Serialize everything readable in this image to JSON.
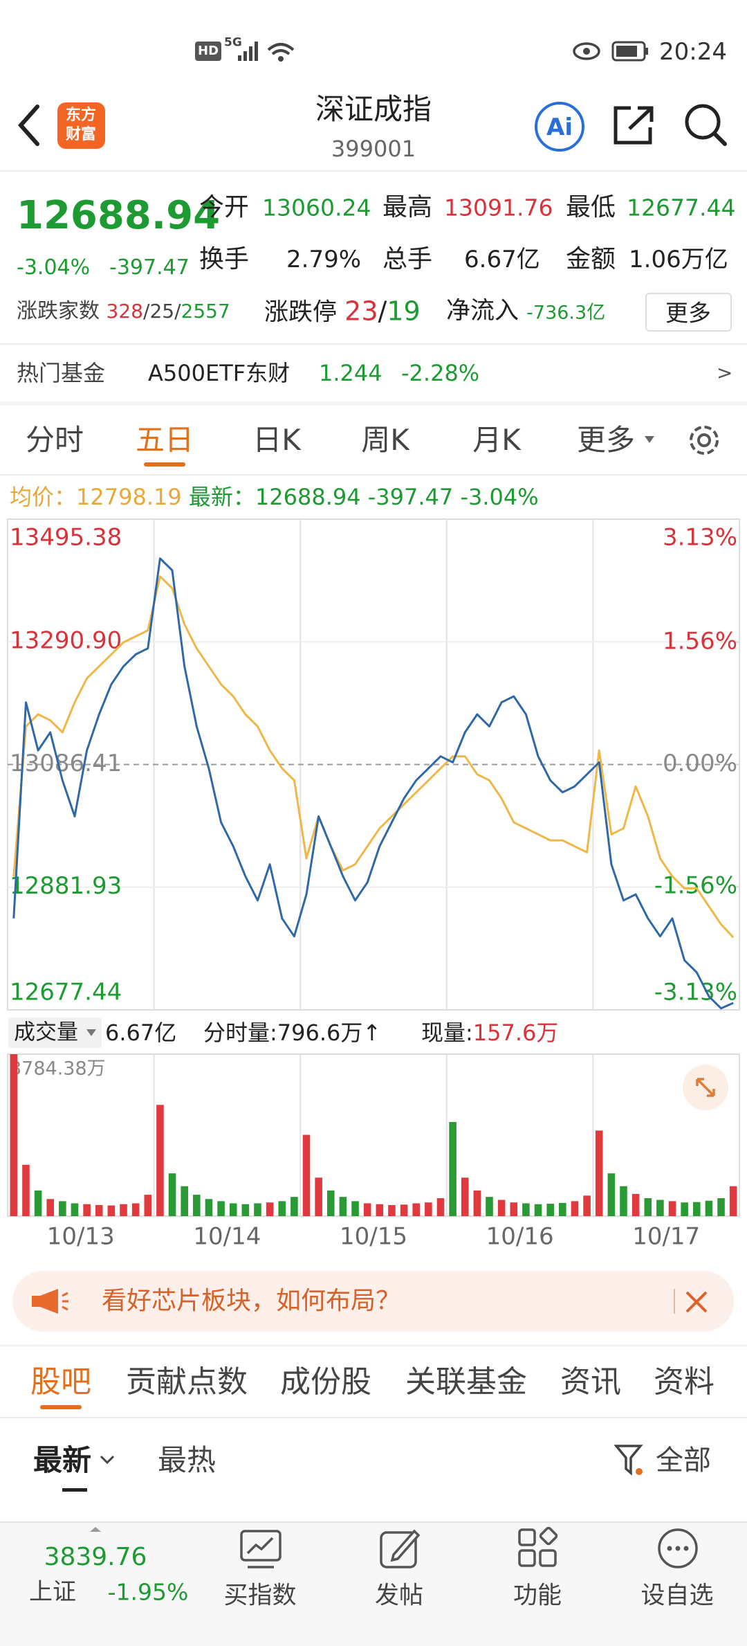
{
  "status_bar": {
    "hd": "HD",
    "network": "5G",
    "time": "20:24"
  },
  "header": {
    "logo": [
      "东方",
      "财富"
    ],
    "title": "深证成指",
    "code": "399001",
    "ai": "Ai"
  },
  "quote": {
    "price": "12688.94",
    "change_pct": "-3.04%",
    "change": "-397.47",
    "stats": [
      {
        "label": "今开",
        "value": "13060.24"
      },
      {
        "label": "最高",
        "value": "13091.76"
      },
      {
        "label": "最低",
        "value": "12677.44"
      },
      {
        "label": "换手",
        "value": "2.79%"
      },
      {
        "label": "总手",
        "value": "6.67亿"
      },
      {
        "label": "金额",
        "value": "1.06万亿"
      }
    ],
    "breadth": {
      "label": "涨跌家数",
      "up": "328",
      "flat": "25",
      "down": "2557",
      "separator": "/"
    },
    "limit": {
      "label": "涨跌停",
      "up": "23",
      "down": "19",
      "separator": "/"
    },
    "net_inflow": {
      "label": "净流入",
      "value": "-736.3亿"
    },
    "more": "更多"
  },
  "hot_fund": {
    "label": "热门基金",
    "name": "A500ETF东财",
    "price": "1.244",
    "change": "-2.28%",
    "arrow": ">"
  },
  "chart_tabs": [
    "分时",
    "五日",
    "日K",
    "周K",
    "月K",
    "更多"
  ],
  "chart_info": {
    "change": "-397.47",
    "change_pct": "-3.04%"
  },
  "volume_info": {
    "label": "成交量",
    "total": "6.67亿",
    "tick_volume": "分时量:796.6万↑",
    "current_label": "现量:",
    "current": "157.6万"
  },
  "chart_data": [
    {
      "type": "line",
      "ylim": [
        12677.44,
        13495.38
      ],
      "yticks": [
        12677.44,
        12881.93,
        13086.41,
        {
          "value": 13290.9,
          "label": "13290.90"
        },
        13495.38
      ],
      "y2lim": [
        -3.13,
        3.13
      ],
      "y2ticks": [
        {
          "value": -3.13,
          "label": "-3.13%"
        },
        {
          "value": -1.56,
          "label": "-1.56%"
        },
        {
          "value": 0,
          "label": "0.00%"
        },
        {
          "value": 1.56,
          "label": "1.56%"
        },
        {
          "value": 3.13,
          "label": "3.13%"
        }
      ],
      "grid": true,
      "series": [
        {
          "name": "均价：",
          "color": "#efb748",
          "values": [
            [
              12900,
              13150,
              13170,
              13160,
              13140,
              13190,
              13230,
              13250,
              13270,
              13290,
              13300,
              13310
            ],
            [
              13400,
              13380,
              13320,
              13280,
              13250,
              13220,
              13200,
              13170,
              13150,
              13110,
              13080,
              13060
            ],
            [
              12930,
              13000,
              12950,
              12910,
              12920,
              12950,
              12980,
              13000,
              13020,
              13040,
              13060,
              13080
            ],
            [
              13100,
              13100,
              13070,
              13060,
              13030,
              12990,
              12980,
              12970,
              12960,
              12960,
              12950,
              12940
            ],
            [
              13110,
              12970,
              12980,
              13050,
              13000,
              12930,
              12900,
              12880,
              12880,
              12850,
              12820,
              12798.19
            ]
          ]
        },
        {
          "name": "最新：",
          "color": "#2f68a8",
          "values": [
            [
              12830,
              13190,
              13110,
              13140,
              13060,
              13000,
              13110,
              13170,
              13220,
              13250,
              13270,
              13280
            ],
            [
              13430,
              13410,
              13250,
              13150,
              13080,
              12990,
              12950,
              12900,
              12860,
              12920,
              12830,
              12800
            ],
            [
              12870,
              13000,
              12950,
              12900,
              12860,
              12890,
              12950,
              12990,
              13030,
              13060,
              13080,
              13100
            ],
            [
              13090,
              13140,
              13170,
              13150,
              13190,
              13200,
              13170,
              13100,
              13060,
              13040,
              13050,
              13070
            ],
            [
              13090,
              12920,
              12860,
              12870,
              12830,
              12800,
              12830,
              12760,
              12740,
              12700,
              12680,
              12688.94
            ]
          ]
        }
      ]
    },
    {
      "type": "bar",
      "categories": [
        "10/13",
        "10/14",
        "10/15",
        "10/16",
        "10/17"
      ],
      "ylim": [
        0,
        3784.38
      ],
      "yticks": [
        {
          "value": 3784.38,
          "label": "3784.38万"
        }
      ],
      "colors": {
        "up": "#e0393e",
        "down": "#2a9a35"
      },
      "values": [
        [
          3784.38,
          1200,
          600,
          400,
          350,
          300,
          280,
          260,
          250,
          280,
          300,
          500
        ],
        [
          2600,
          1000,
          700,
          500,
          400,
          350,
          300,
          280,
          300,
          320,
          350,
          450
        ],
        [
          1900,
          900,
          600,
          450,
          350,
          300,
          280,
          260,
          270,
          300,
          320,
          420
        ],
        [
          2200,
          900,
          600,
          450,
          380,
          320,
          300,
          280,
          290,
          310,
          350,
          480
        ],
        [
          2000,
          1000,
          700,
          520,
          420,
          380,
          350,
          320,
          330,
          360,
          420,
          700
        ]
      ]
    }
  ],
  "banner": {
    "text": "看好芯片板块，如何布局？"
  },
  "tabs": [
    "股吧",
    "贡献点数",
    "成份股",
    "关联基金",
    "资讯",
    "资料"
  ],
  "sub_tabs": {
    "items": [
      "最新",
      "最热"
    ],
    "filter": "全部"
  },
  "bottom_nav": {
    "index_value": "3839.76",
    "index_name": "上证",
    "index_change": "-1.95%",
    "items": [
      "买指数",
      "发帖",
      "功能",
      "设自选"
    ]
  }
}
